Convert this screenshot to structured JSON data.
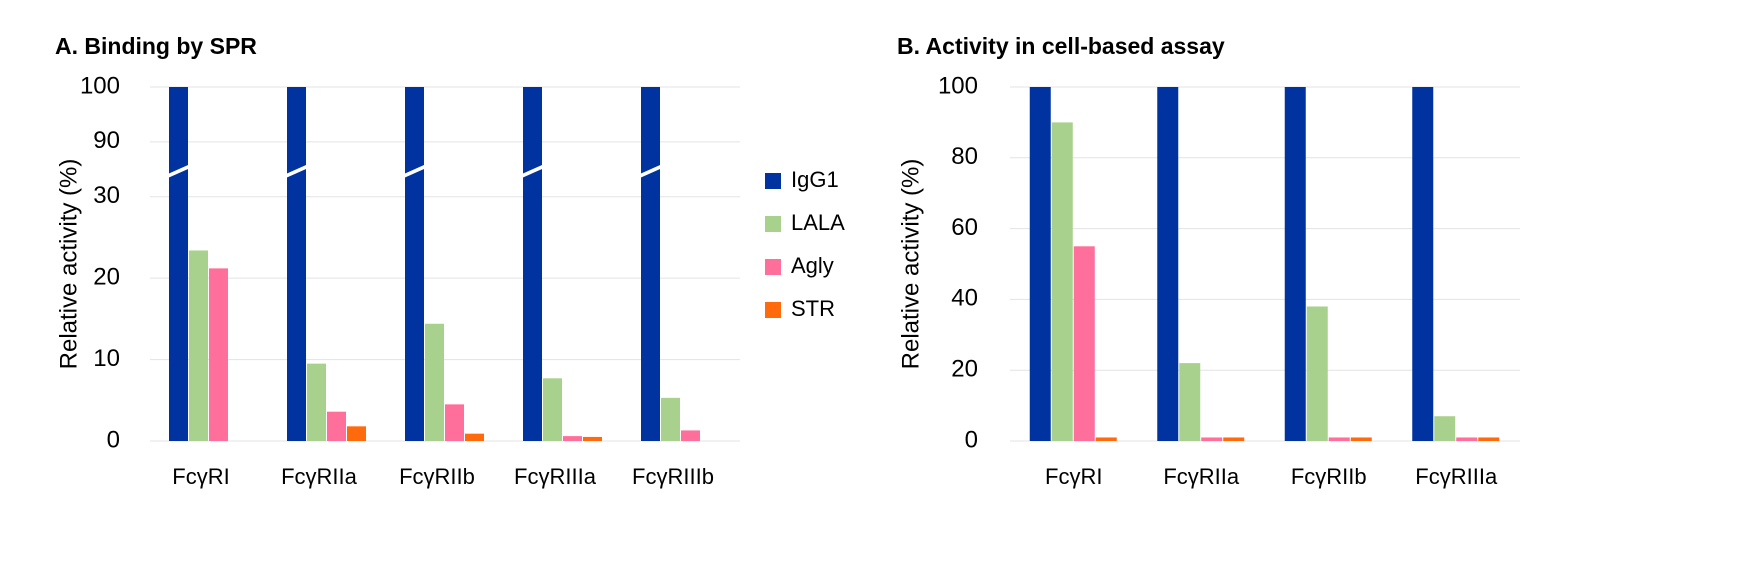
{
  "chart_data": [
    {
      "type": "bar",
      "title": "A. Binding by SPR",
      "y_label": "Relative activity (%)",
      "categories": [
        "FcγRI",
        "FcγRIIa",
        "FcγRIIb",
        "FcγRIIIa",
        "FcγRIIIb"
      ],
      "series": [
        {
          "name": "IgG1",
          "color": "#0033a0",
          "values": [
            100,
            100,
            100,
            100,
            100
          ]
        },
        {
          "name": "LALA",
          "color": "#a9d18e",
          "values": [
            23.4,
            9.5,
            14.4,
            7.7,
            5.3
          ]
        },
        {
          "name": "Agly",
          "color": "#ff6f9c",
          "values": [
            21.2,
            3.6,
            4.5,
            0.6,
            1.3
          ]
        },
        {
          "name": "STR",
          "color": "#ff6a0d",
          "values": [
            0,
            1.8,
            0.9,
            0.5,
            0
          ]
        }
      ],
      "ylim": [
        0,
        100
      ],
      "axis_break": [
        30,
        90
      ],
      "yticks": [
        0,
        10,
        20,
        30,
        90,
        100
      ],
      "grid": true,
      "legend": "right"
    },
    {
      "type": "bar",
      "title": "B. Activity in cell-based assay",
      "y_label": "Relative activity (%)",
      "categories": [
        "FcγRI",
        "FcγRIIa",
        "FcγRIIb",
        "FcγRIIIa"
      ],
      "series": [
        {
          "color": "#0033a0",
          "values": [
            100,
            100,
            100,
            100
          ]
        },
        {
          "color": "#a9d18e",
          "values": [
            90,
            22,
            38,
            7
          ]
        },
        {
          "color": "#ff6f9c",
          "values": [
            55,
            1,
            1,
            1
          ]
        },
        {
          "color": "#ff6a0d",
          "values": [
            1,
            1,
            1,
            1
          ]
        }
      ],
      "ylim": [
        0,
        100
      ],
      "yticks": [
        0,
        20,
        40,
        60,
        80,
        100
      ],
      "grid": true
    }
  ]
}
